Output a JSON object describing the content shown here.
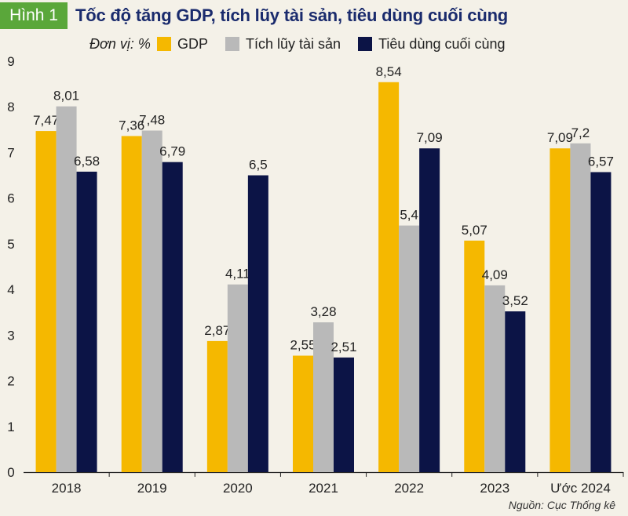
{
  "header": {
    "badge": "Hình 1",
    "title": "Tốc độ tăng GDP, tích lũy tài sản, tiêu dùng cuối cùng"
  },
  "unit_label": "Đơn vị: %",
  "source": "Nguồn: Cục Thống kê",
  "colors": {
    "gdp": "#f5b800",
    "accumulation": "#b9b9b9",
    "consumption": "#0c1446",
    "background": "#f4f1e8",
    "title": "#1a2b6d",
    "badge": "#5aa73a"
  },
  "chart_data": {
    "type": "bar",
    "categories": [
      "2018",
      "2019",
      "2020",
      "2021",
      "2022",
      "2023",
      "Ước 2024"
    ],
    "series": [
      {
        "name": "GDP",
        "values": [
          7.47,
          7.36,
          2.87,
          2.55,
          8.54,
          5.07,
          7.09
        ],
        "labels": [
          "7,47",
          "7,36",
          "2,87",
          "2,55",
          "8,54",
          "5,07",
          "7,09"
        ]
      },
      {
        "name": "Tích lũy tài sản",
        "values": [
          8.01,
          7.48,
          4.11,
          3.28,
          5.4,
          4.09,
          7.2
        ],
        "labels": [
          "8,01",
          "7,48",
          "4,11",
          "3,28",
          "5,4",
          "4,09",
          "7,2"
        ]
      },
      {
        "name": "Tiêu dùng cuối cùng",
        "values": [
          6.58,
          6.79,
          6.5,
          2.51,
          7.09,
          3.52,
          6.57
        ],
        "labels": [
          "6,58",
          "6,79",
          "6,5",
          "2,51",
          "7,09",
          "3,52",
          "6,57"
        ]
      }
    ],
    "ylim": [
      0,
      9
    ],
    "yticks": [
      "0",
      "1",
      "2",
      "3",
      "4",
      "5",
      "6",
      "7",
      "8",
      "9"
    ],
    "grid": false,
    "legend": "top"
  }
}
